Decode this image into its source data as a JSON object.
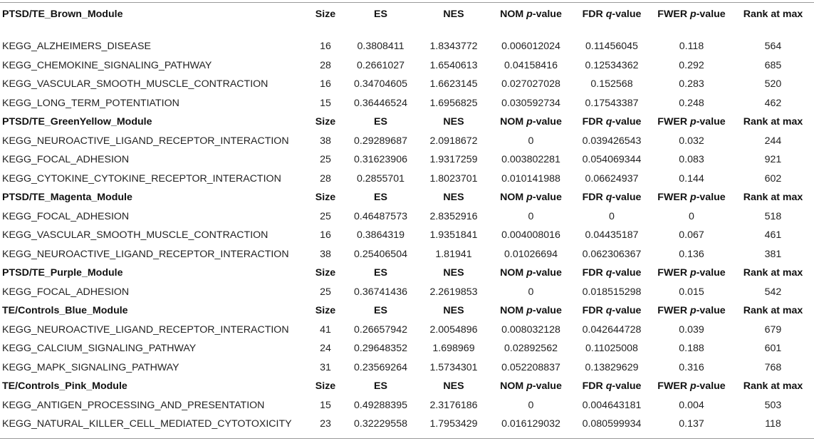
{
  "columns": {
    "size": "Size",
    "es": "ES",
    "nes": "NES",
    "nom_pre": "NOM ",
    "nom_ital": "p",
    "nom_post": "-value",
    "fdr_pre": "FDR ",
    "fdr_ital": "q",
    "fdr_post": "-value",
    "fwer_pre": "FWER ",
    "fwer_ital": "p",
    "fwer_post": "-value",
    "rank": "Rank at max"
  },
  "modules": [
    {
      "name": "PTSD/TE_Brown_Module",
      "rows": [
        {
          "name": "KEGG_ALZHEIMERS_DISEASE",
          "size": "16",
          "es": "0.3808411",
          "nes": "1.8343772",
          "nom": "0.006012024",
          "fdr": "0.11456045",
          "fwer": "0.118",
          "rank": "564"
        },
        {
          "name": "KEGG_CHEMOKINE_SIGNALING_PATHWAY",
          "size": "28",
          "es": "0.2661027",
          "nes": "1.6540613",
          "nom": "0.04158416",
          "fdr": "0.12534362",
          "fwer": "0.292",
          "rank": "685"
        },
        {
          "name": "KEGG_VASCULAR_SMOOTH_MUSCLE_CONTRACTION",
          "size": "16",
          "es": "0.34704605",
          "nes": "1.6623145",
          "nom": "0.027027028",
          "fdr": "0.152568",
          "fwer": "0.283",
          "rank": "520"
        },
        {
          "name": "KEGG_LONG_TERM_POTENTIATION",
          "size": "15",
          "es": "0.36446524",
          "nes": "1.6956825",
          "nom": "0.030592734",
          "fdr": "0.17543387",
          "fwer": "0.248",
          "rank": "462"
        }
      ]
    },
    {
      "name": "PTSD/TE_GreenYellow_Module",
      "rows": [
        {
          "name": "KEGG_NEUROACTIVE_LIGAND_RECEPTOR_INTERACTION",
          "size": "38",
          "es": "0.29289687",
          "nes": "2.0918672",
          "nom": "0",
          "fdr": "0.039426543",
          "fwer": "0.032",
          "rank": "244"
        },
        {
          "name": "KEGG_FOCAL_ADHESION",
          "size": "25",
          "es": "0.31623906",
          "nes": "1.9317259",
          "nom": "0.003802281",
          "fdr": "0.054069344",
          "fwer": "0.083",
          "rank": "921"
        },
        {
          "name": "KEGG_CYTOKINE_CYTOKINE_RECEPTOR_INTERACTION",
          "size": "28",
          "es": "0.2855701",
          "nes": "1.8023701",
          "nom": "0.010141988",
          "fdr": "0.06624937",
          "fwer": "0.144",
          "rank": "602"
        }
      ]
    },
    {
      "name": "PTSD/TE_Magenta_Module",
      "rows": [
        {
          "name": "KEGG_FOCAL_ADHESION",
          "size": "25",
          "es": "0.46487573",
          "nes": "2.8352916",
          "nom": "0",
          "fdr": "0",
          "fwer": "0",
          "rank": "518"
        },
        {
          "name": "KEGG_VASCULAR_SMOOTH_MUSCLE_CONTRACTION",
          "size": "16",
          "es": "0.3864319",
          "nes": "1.9351841",
          "nom": "0.004008016",
          "fdr": "0.04435187",
          "fwer": "0.067",
          "rank": "461"
        },
        {
          "name": "KEGG_NEUROACTIVE_LIGAND_RECEPTOR_INTERACTION",
          "size": "38",
          "es": "0.25406504",
          "nes": "1.81941",
          "nom": "0.01026694",
          "fdr": "0.062306367",
          "fwer": "0.136",
          "rank": "381"
        }
      ]
    },
    {
      "name": "PTSD/TE_Purple_Module",
      "rows": [
        {
          "name": "KEGG_FOCAL_ADHESION",
          "size": "25",
          "es": "0.36741436",
          "nes": "2.2619853",
          "nom": "0",
          "fdr": "0.018515298",
          "fwer": "0.015",
          "rank": "542"
        }
      ]
    },
    {
      "name": "TE/Controls_Blue_Module",
      "rows": [
        {
          "name": "KEGG_NEUROACTIVE_LIGAND_RECEPTOR_INTERACTION",
          "size": "41",
          "es": "0.26657942",
          "nes": "2.0054896",
          "nom": "0.008032128",
          "fdr": "0.042644728",
          "fwer": "0.039",
          "rank": "679"
        },
        {
          "name": "KEGG_CALCIUM_SIGNALING_PATHWAY",
          "size": "24",
          "es": "0.29648352",
          "nes": "1.698969",
          "nom": "0.02892562",
          "fdr": "0.11025008",
          "fwer": "0.188",
          "rank": "601"
        },
        {
          "name": "KEGG_MAPK_SIGNALING_PATHWAY",
          "size": "31",
          "es": "0.23569264",
          "nes": "1.5734301",
          "nom": "0.052208837",
          "fdr": "0.13829629",
          "fwer": "0.316",
          "rank": "768"
        }
      ]
    },
    {
      "name": "TE/Controls_Pink_Module",
      "rows": [
        {
          "name": "KEGG_ANTIGEN_PROCESSING_AND_PRESENTATION",
          "size": "15",
          "es": "0.49288395",
          "nes": "2.3176186",
          "nom": "0",
          "fdr": "0.004643181",
          "fwer": "0.004",
          "rank": "503"
        },
        {
          "name": "KEGG_NATURAL_KILLER_CELL_MEDIATED_CYTOTOXICITY",
          "size": "23",
          "es": "0.32229558",
          "nes": "1.7953429",
          "nom": "0.016129032",
          "fdr": "0.080599934",
          "fwer": "0.137",
          "rank": "118"
        }
      ]
    }
  ]
}
